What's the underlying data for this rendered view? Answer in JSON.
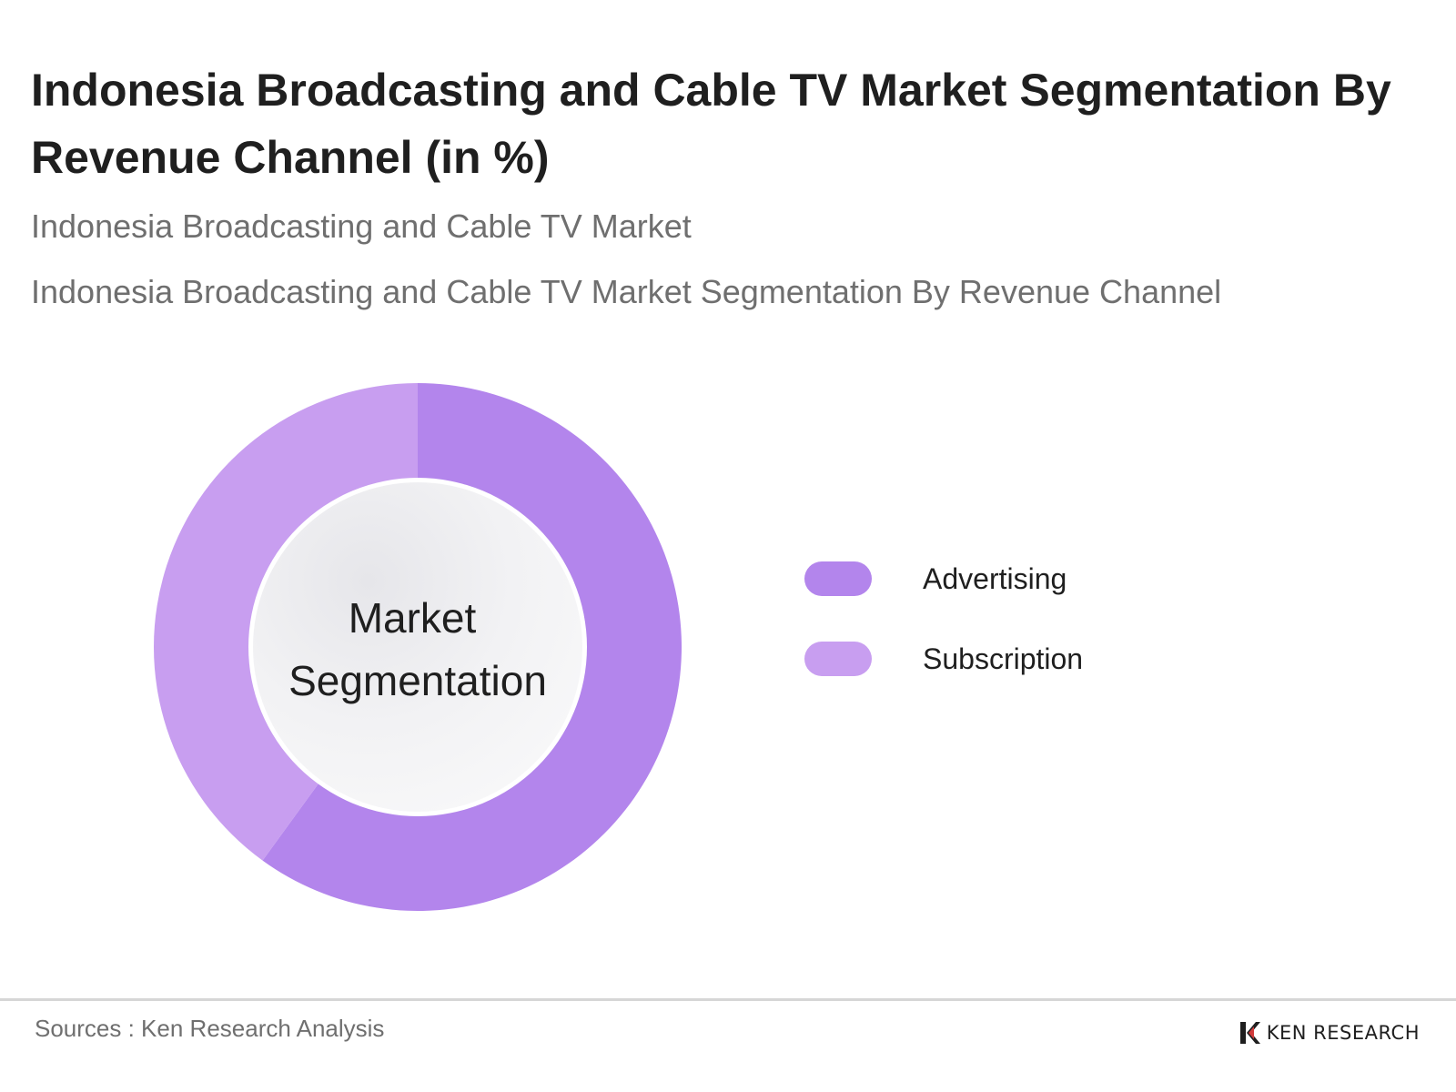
{
  "header": {
    "title": "Indonesia Broadcasting and Cable TV Market Segmentation By Revenue Channel (in %)",
    "subtitle_1": "Indonesia Broadcasting and Cable TV Market",
    "subtitle_2": "Indonesia Broadcasting and Cable TV Market Segmentation By Revenue Channel"
  },
  "chart_data": {
    "type": "pie",
    "variant": "donut",
    "center_label_line1": "Market",
    "center_label_line2": "Segmentation",
    "categories": [
      "Advertising",
      "Subscription"
    ],
    "values": [
      60,
      40
    ],
    "colors": [
      "#b385ec",
      "#c89ef0"
    ],
    "legend_position": "right"
  },
  "footer": {
    "source": "Sources : Ken Research Analysis",
    "brand": "KEN RESEARCH",
    "logo_icon": "ken-research-logo-icon"
  }
}
